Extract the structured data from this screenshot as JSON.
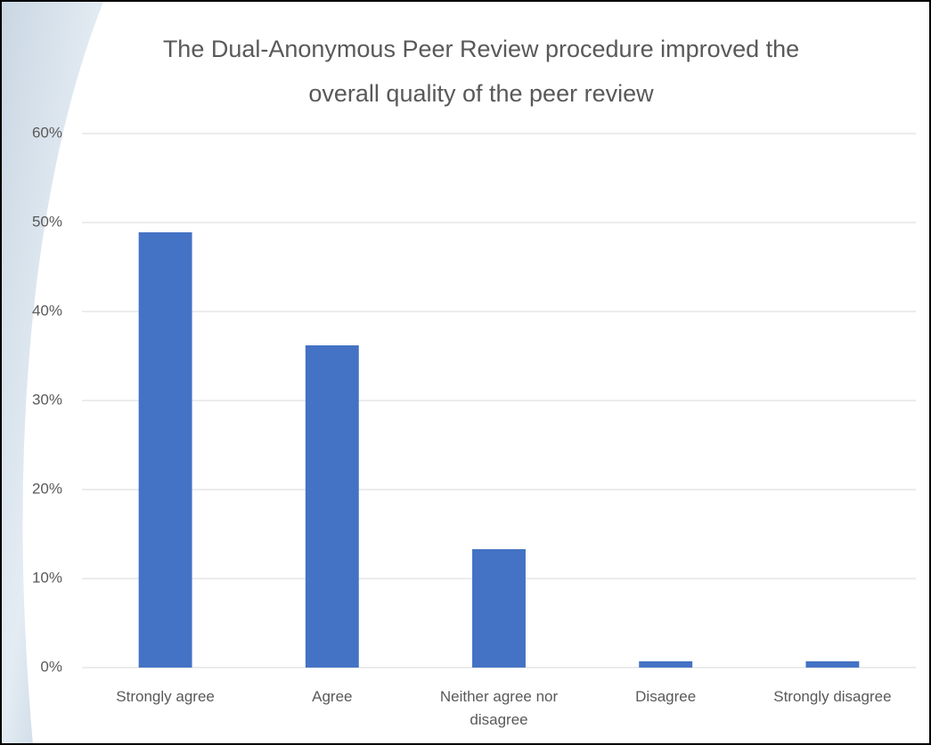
{
  "chart_data": {
    "type": "bar",
    "title": "The Dual-Anonymous Peer Review procedure improved the overall quality of the peer review",
    "categories": [
      "Strongly agree",
      "Agree",
      "Neither agree nor disagree",
      "Disagree",
      "Strongly disagree"
    ],
    "values": [
      48.9,
      36.2,
      13.3,
      0.7,
      0.7
    ],
    "color": "#4472c4",
    "ylim": [
      0,
      60
    ],
    "yticks": [
      {
        "value": 0,
        "label": "0%"
      },
      {
        "value": 10,
        "label": "10%"
      },
      {
        "value": 20,
        "label": "20%"
      },
      {
        "value": 30,
        "label": "30%"
      },
      {
        "value": 40,
        "label": "40%"
      },
      {
        "value": 50,
        "label": "50%"
      },
      {
        "value": 60,
        "label": "60%"
      }
    ],
    "grid": true
  }
}
